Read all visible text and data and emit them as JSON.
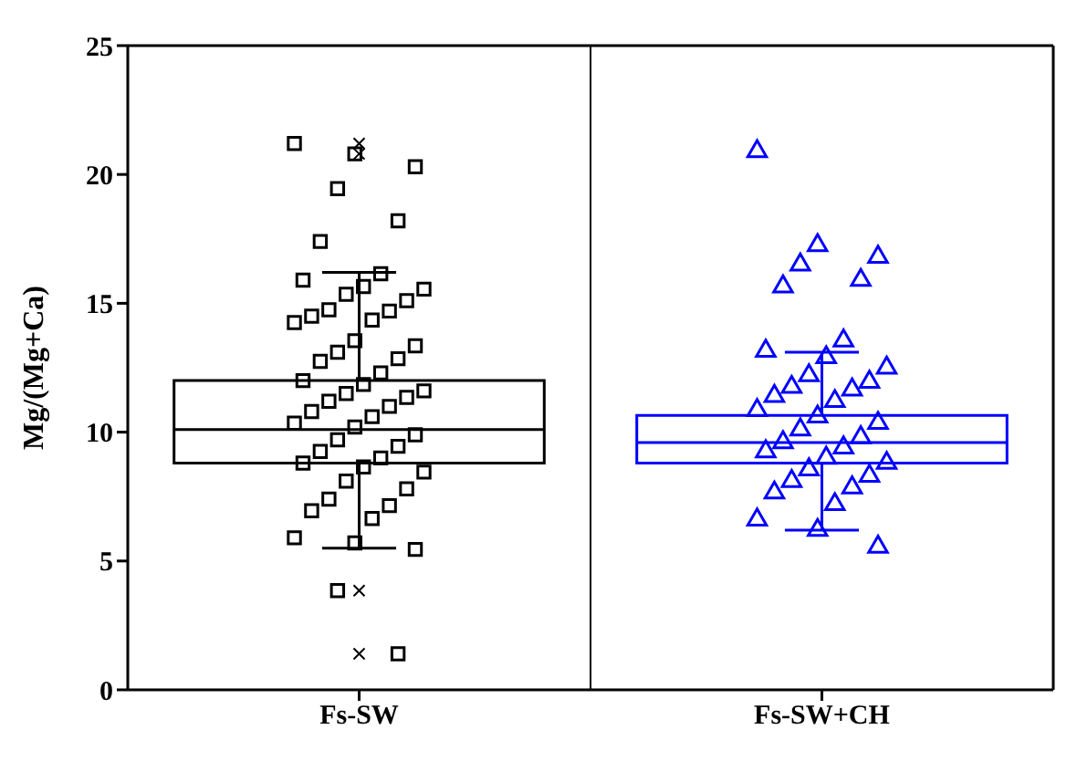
{
  "chart_data": {
    "type": "box",
    "categories": [
      "Fs-SW",
      "Fs-SW+CH"
    ],
    "ylabel": "Mg/(Mg+Ca)",
    "ylim": [
      0,
      25
    ],
    "yticks": [
      0,
      5,
      10,
      15,
      20,
      25
    ],
    "colors": [
      "#000000",
      "#0000ff"
    ],
    "boxes": [
      {
        "low": 5.5,
        "q1": 8.8,
        "median": 10.1,
        "q3": 12.0,
        "high": 16.2,
        "outliers": [
          21.2,
          20.8,
          3.85,
          1.4
        ]
      },
      {
        "low": 6.2,
        "q1": 8.8,
        "median": 9.6,
        "q3": 10.65,
        "high": 13.1
      }
    ],
    "series": [
      {
        "type": "scatter",
        "marker": "square",
        "color": "#000000",
        "x": [
          "Fs-SW",
          "Fs-SW",
          "Fs-SW",
          "Fs-SW",
          "Fs-SW",
          "Fs-SW",
          "Fs-SW",
          "Fs-SW",
          "Fs-SW",
          "Fs-SW",
          "Fs-SW",
          "Fs-SW",
          "Fs-SW",
          "Fs-SW",
          "Fs-SW",
          "Fs-SW",
          "Fs-SW",
          "Fs-SW",
          "Fs-SW",
          "Fs-SW",
          "Fs-SW",
          "Fs-SW",
          "Fs-SW",
          "Fs-SW",
          "Fs-SW",
          "Fs-SW",
          "Fs-SW",
          "Fs-SW",
          "Fs-SW",
          "Fs-SW",
          "Fs-SW",
          "Fs-SW",
          "Fs-SW",
          "Fs-SW",
          "Fs-SW",
          "Fs-SW",
          "Fs-SW",
          "Fs-SW",
          "Fs-SW",
          "Fs-SW",
          "Fs-SW",
          "Fs-SW",
          "Fs-SW",
          "Fs-SW",
          "Fs-SW",
          "Fs-SW",
          "Fs-SW",
          "Fs-SW",
          "Fs-SW",
          "Fs-SW",
          "Fs-SW",
          "Fs-SW",
          "Fs-SW"
        ],
        "values": [
          21.2,
          20.8,
          20.3,
          19.45,
          18.2,
          17.4,
          16.15,
          15.9,
          15.65,
          15.55,
          15.35,
          15.1,
          14.75,
          14.7,
          14.5,
          14.35,
          14.25,
          13.55,
          13.35,
          13.1,
          12.85,
          12.75,
          12.3,
          12.0,
          11.85,
          11.6,
          11.5,
          11.35,
          11.2,
          11.0,
          10.8,
          10.6,
          10.35,
          10.2,
          9.9,
          9.7,
          9.45,
          9.25,
          9.0,
          8.8,
          8.65,
          8.45,
          8.1,
          7.8,
          7.4,
          7.15,
          6.95,
          6.65,
          5.9,
          5.7,
          5.45,
          3.85,
          1.4
        ]
      },
      {
        "type": "scatter",
        "marker": "triangle",
        "color": "#0000ff",
        "x": [
          "Fs-SW+CH",
          "Fs-SW+CH",
          "Fs-SW+CH",
          "Fs-SW+CH",
          "Fs-SW+CH",
          "Fs-SW+CH",
          "Fs-SW+CH",
          "Fs-SW+CH",
          "Fs-SW+CH",
          "Fs-SW+CH",
          "Fs-SW+CH",
          "Fs-SW+CH",
          "Fs-SW+CH",
          "Fs-SW+CH",
          "Fs-SW+CH",
          "Fs-SW+CH",
          "Fs-SW+CH",
          "Fs-SW+CH",
          "Fs-SW+CH",
          "Fs-SW+CH",
          "Fs-SW+CH",
          "Fs-SW+CH",
          "Fs-SW+CH",
          "Fs-SW+CH",
          "Fs-SW+CH",
          "Fs-SW+CH",
          "Fs-SW+CH",
          "Fs-SW+CH",
          "Fs-SW+CH",
          "Fs-SW+CH",
          "Fs-SW+CH",
          "Fs-SW+CH",
          "Fs-SW+CH",
          "Fs-SW+CH",
          "Fs-SW+CH"
        ],
        "values": [
          20.9,
          17.25,
          16.8,
          16.5,
          15.9,
          15.65,
          13.55,
          13.15,
          12.9,
          12.5,
          12.2,
          11.95,
          11.75,
          11.65,
          11.4,
          11.2,
          10.85,
          10.6,
          10.35,
          10.1,
          9.8,
          9.6,
          9.4,
          9.25,
          9.0,
          8.8,
          8.55,
          8.3,
          8.1,
          7.85,
          7.65,
          7.2,
          6.6,
          6.2,
          5.55
        ]
      }
    ]
  }
}
